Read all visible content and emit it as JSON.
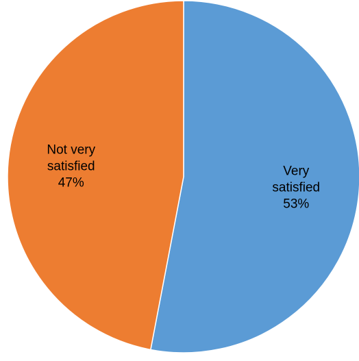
{
  "chart_data": {
    "type": "pie",
    "slices": [
      {
        "label_lines": [
          "Very",
          "satisfied"
        ],
        "value": 53,
        "display_value": "53%",
        "color": "#5B9BD5"
      },
      {
        "label_lines": [
          "Not very",
          "satisfied"
        ],
        "value": 47,
        "display_value": "47%",
        "color": "#ED7D31"
      }
    ],
    "start_angle_deg": 0,
    "direction": "clockwise",
    "legend": "none",
    "data_labels": "inside"
  }
}
